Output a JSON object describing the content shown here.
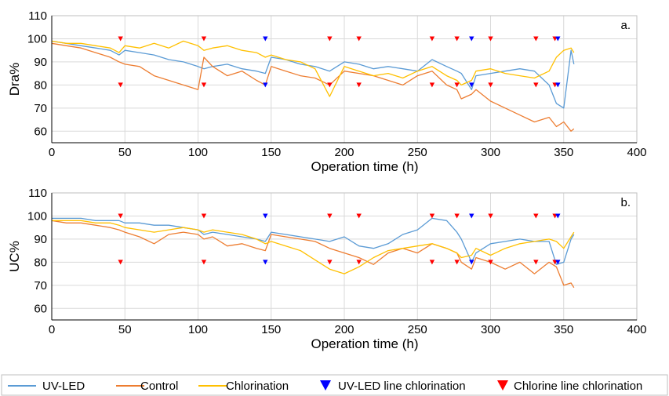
{
  "chart_data": [
    {
      "type": "line",
      "panel_label": "a.",
      "xlabel": "Operation time (h)",
      "ylabel": "Dra%",
      "xlim": [
        0,
        400
      ],
      "ylim": [
        55,
        110
      ],
      "xticks": [
        0,
        50,
        100,
        150,
        200,
        250,
        300,
        350,
        400
      ],
      "yticks": [
        60,
        70,
        80,
        90,
        100,
        110
      ],
      "grid": true,
      "series": [
        {
          "name": "UV-LED",
          "color": "#5b9bd5",
          "x": [
            0,
            10,
            20,
            30,
            40,
            46,
            50,
            60,
            70,
            80,
            90,
            100,
            104,
            110,
            120,
            130,
            140,
            146,
            150,
            160,
            170,
            180,
            190,
            200,
            210,
            220,
            230,
            240,
            250,
            260,
            270,
            277,
            280,
            287,
            290,
            300,
            310,
            320,
            330,
            340,
            345,
            350,
            355,
            357
          ],
          "y": [
            99,
            98,
            97,
            96,
            95,
            93,
            95,
            94,
            93,
            91,
            90,
            88,
            87,
            88,
            89,
            87,
            86,
            85,
            92,
            91,
            89,
            88,
            86,
            90,
            89,
            87,
            88,
            87,
            86,
            91,
            88,
            86,
            85,
            78,
            84,
            85,
            86,
            87,
            86,
            80,
            72,
            70,
            95,
            89
          ]
        },
        {
          "name": "Control",
          "color": "#ed7d31",
          "x": [
            0,
            10,
            20,
            30,
            40,
            46,
            50,
            60,
            70,
            80,
            90,
            100,
            104,
            110,
            120,
            130,
            140,
            146,
            150,
            160,
            170,
            180,
            190,
            200,
            210,
            220,
            230,
            240,
            250,
            260,
            270,
            277,
            280,
            287,
            290,
            300,
            310,
            320,
            330,
            340,
            345,
            350,
            355,
            357
          ],
          "y": [
            98,
            97,
            96,
            94,
            92,
            90,
            89,
            88,
            84,
            82,
            80,
            78,
            92,
            88,
            84,
            86,
            82,
            80,
            88,
            86,
            84,
            83,
            80,
            86,
            85,
            84,
            82,
            80,
            84,
            86,
            80,
            78,
            74,
            76,
            78,
            73,
            70,
            67,
            64,
            66,
            62,
            64,
            60,
            61
          ]
        },
        {
          "name": "Chlorination",
          "color": "#ffc000",
          "x": [
            0,
            10,
            20,
            30,
            40,
            46,
            50,
            60,
            70,
            80,
            90,
            100,
            104,
            110,
            120,
            130,
            140,
            146,
            150,
            160,
            170,
            180,
            190,
            200,
            210,
            220,
            230,
            240,
            250,
            260,
            270,
            277,
            280,
            287,
            290,
            300,
            310,
            320,
            330,
            340,
            345,
            350,
            355,
            357
          ],
          "y": [
            99,
            98,
            98,
            97,
            96,
            94,
            97,
            96,
            98,
            96,
            99,
            97,
            95,
            96,
            97,
            95,
            94,
            92,
            93,
            91,
            90,
            87,
            75,
            88,
            86,
            84,
            85,
            83,
            86,
            88,
            84,
            82,
            80,
            82,
            86,
            87,
            85,
            84,
            83,
            86,
            92,
            95,
            96,
            94
          ]
        }
      ],
      "annotations": {
        "uvled_line_chlorination": {
          "color": "#0000ff",
          "x": [
            146,
            287,
            346
          ],
          "y_top": 100,
          "y_bottom": 80
        },
        "chlorine_line_chlorination": {
          "color": "#ff0000",
          "x": [
            47,
            104,
            190,
            210,
            260,
            277,
            300,
            331,
            344
          ],
          "y_top": 100,
          "y_bottom": 80
        }
      }
    },
    {
      "type": "line",
      "panel_label": "b.",
      "xlabel": "Operation time (h)",
      "ylabel": "UC%",
      "xlim": [
        0,
        400
      ],
      "ylim": [
        55,
        110
      ],
      "xticks": [
        0,
        50,
        100,
        150,
        200,
        250,
        300,
        350,
        400
      ],
      "yticks": [
        60,
        70,
        80,
        90,
        100,
        110
      ],
      "grid": true,
      "series": [
        {
          "name": "UV-LED",
          "color": "#5b9bd5",
          "x": [
            0,
            10,
            20,
            30,
            40,
            46,
            50,
            60,
            70,
            80,
            90,
            100,
            104,
            110,
            120,
            130,
            140,
            146,
            150,
            160,
            170,
            180,
            190,
            200,
            210,
            220,
            230,
            240,
            250,
            260,
            270,
            277,
            280,
            287,
            290,
            300,
            310,
            320,
            330,
            340,
            345,
            350,
            355,
            357
          ],
          "y": [
            99,
            99,
            99,
            98,
            98,
            98,
            97,
            97,
            96,
            96,
            95,
            94,
            92,
            93,
            92,
            91,
            90,
            89,
            93,
            92,
            91,
            90,
            89,
            91,
            87,
            86,
            88,
            92,
            94,
            99,
            98,
            93,
            90,
            80,
            84,
            88,
            89,
            90,
            89,
            89,
            79,
            80,
            90,
            92
          ]
        },
        {
          "name": "Control",
          "color": "#ed7d31",
          "x": [
            0,
            10,
            20,
            30,
            40,
            46,
            50,
            60,
            70,
            80,
            90,
            100,
            104,
            110,
            120,
            130,
            140,
            146,
            150,
            160,
            170,
            180,
            190,
            200,
            210,
            220,
            230,
            240,
            250,
            260,
            270,
            277,
            280,
            287,
            290,
            300,
            310,
            320,
            330,
            340,
            345,
            350,
            355,
            357
          ],
          "y": [
            98,
            97,
            97,
            96,
            95,
            94,
            93,
            91,
            88,
            92,
            93,
            92,
            90,
            91,
            87,
            88,
            86,
            85,
            92,
            91,
            90,
            89,
            86,
            84,
            82,
            79,
            84,
            86,
            84,
            88,
            86,
            84,
            80,
            77,
            82,
            80,
            77,
            80,
            75,
            80,
            78,
            70,
            71,
            69
          ]
        },
        {
          "name": "Chlorination",
          "color": "#ffc000",
          "x": [
            0,
            10,
            20,
            30,
            40,
            46,
            50,
            60,
            70,
            80,
            90,
            100,
            104,
            110,
            120,
            130,
            140,
            146,
            150,
            160,
            170,
            180,
            190,
            200,
            210,
            220,
            230,
            240,
            250,
            260,
            270,
            277,
            280,
            287,
            290,
            300,
            310,
            320,
            330,
            340,
            345,
            350,
            355,
            357
          ],
          "y": [
            98,
            98,
            98,
            97,
            97,
            96,
            95,
            94,
            93,
            94,
            95,
            94,
            93,
            94,
            93,
            92,
            90,
            88,
            89,
            87,
            85,
            81,
            77,
            75,
            78,
            82,
            85,
            86,
            87,
            88,
            86,
            84,
            82,
            83,
            86,
            83,
            86,
            88,
            89,
            90,
            89,
            86,
            91,
            93
          ]
        }
      ],
      "annotations": {
        "uvled_line_chlorination": {
          "color": "#0000ff",
          "x": [
            146,
            287,
            346
          ],
          "y_top": 100,
          "y_bottom": 80
        },
        "chlorine_line_chlorination": {
          "color": "#ff0000",
          "x": [
            47,
            104,
            190,
            210,
            260,
            277,
            300,
            331,
            344
          ],
          "y_top": 100,
          "y_bottom": 80
        }
      }
    }
  ],
  "legend": {
    "placement": "bottom",
    "items": [
      {
        "label": "UV-LED",
        "kind": "line",
        "color": "#5b9bd5"
      },
      {
        "label": "Control",
        "kind": "line",
        "color": "#ed7d31"
      },
      {
        "label": "Chlorination",
        "kind": "line",
        "color": "#ffc000"
      },
      {
        "label": "UV-LED line chlorination",
        "kind": "triangle-down",
        "color": "#0000ff"
      },
      {
        "label": "Chlorine line chlorination",
        "kind": "triangle-down",
        "color": "#ff0000"
      }
    ]
  }
}
